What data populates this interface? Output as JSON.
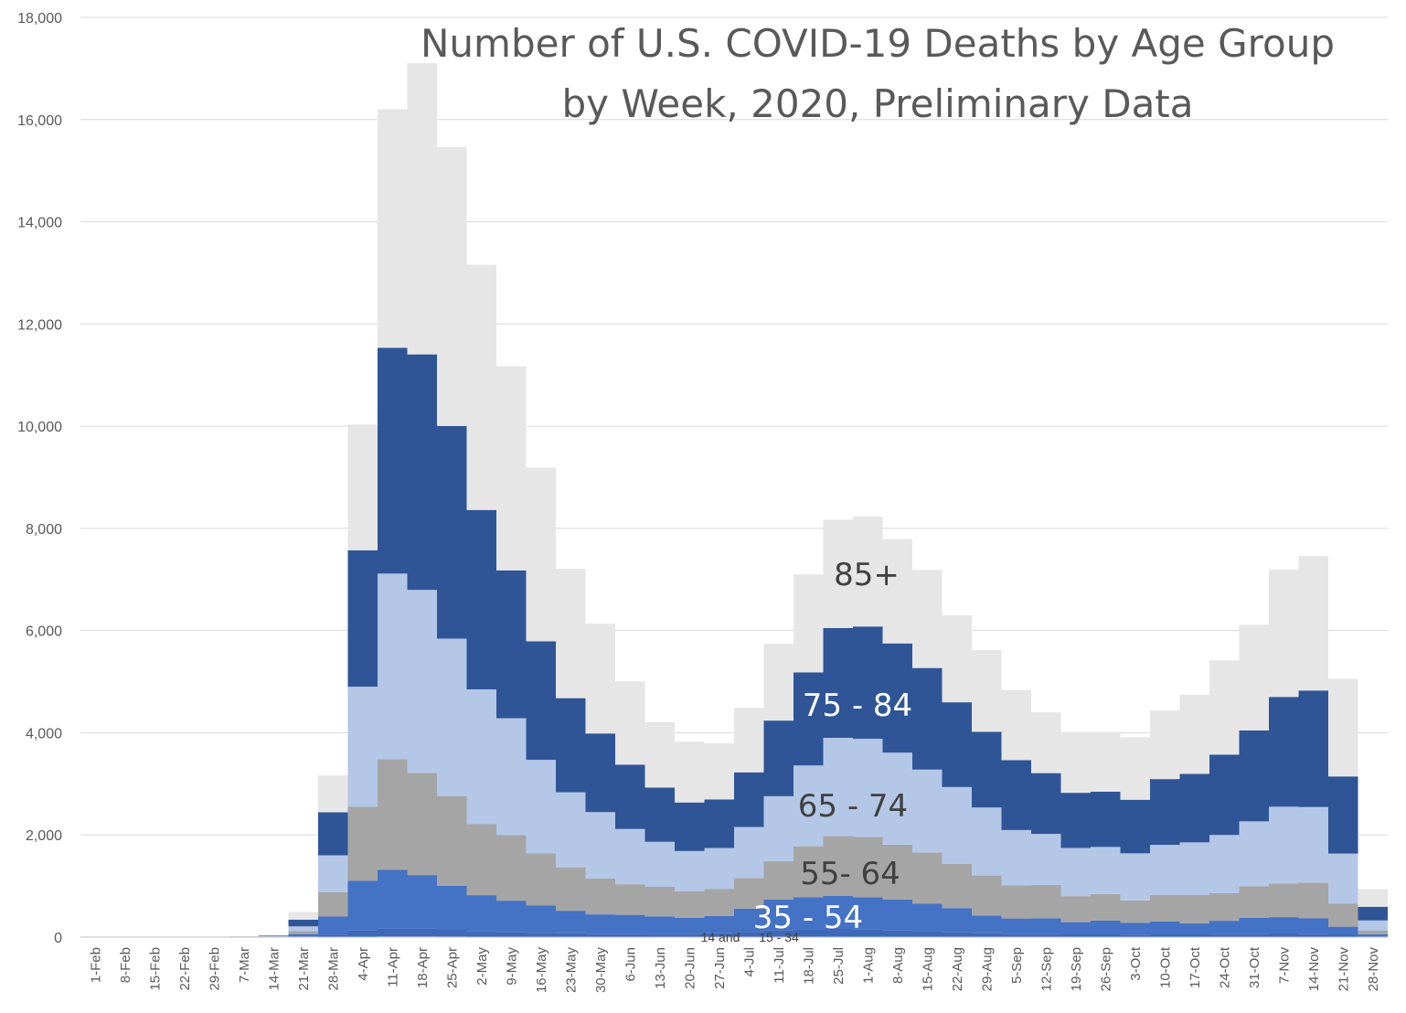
{
  "chart_data": {
    "type": "area",
    "stacked": true,
    "step": true,
    "title_lines": [
      "Number of U.S. COVID-19 Deaths by Age Group",
      "by Week, 2020, Preliminary Data"
    ],
    "xlabel": "",
    "ylabel": "",
    "ylim": [
      0,
      18000
    ],
    "y_ticks": [
      "0",
      "2,000",
      "4,000",
      "6,000",
      "8,000",
      "10,000",
      "12,000",
      "14,000",
      "16,000",
      "18,000"
    ],
    "grid": true,
    "legend": "none",
    "categories": [
      "1-Feb",
      "8-Feb",
      "15-Feb",
      "22-Feb",
      "29-Feb",
      "7-Mar",
      "14-Mar",
      "21-Mar",
      "28-Mar",
      "4-Apr",
      "11-Apr",
      "18-Apr",
      "25-Apr",
      "2-May",
      "9-May",
      "16-May",
      "23-May",
      "30-May",
      "6-Jun",
      "13-Jun",
      "20-Jun",
      "27-Jun",
      "4-Jul",
      "11-Jul",
      "18-Jul",
      "25-Jul",
      "1-Aug",
      "8-Aug",
      "15-Aug",
      "22-Aug",
      "29-Aug",
      "5-Sep",
      "12-Sep",
      "19-Sep",
      "26-Sep",
      "3-Oct",
      "10-Oct",
      "17-Oct",
      "24-Oct",
      "31-Oct",
      "7-Nov",
      "14-Nov",
      "21-Nov",
      "28-Nov"
    ],
    "series": [
      {
        "label": "14 and",
        "color": "#4472c4",
        "values": [
          0,
          0,
          0,
          0,
          0,
          0,
          0,
          1,
          2,
          10,
          14,
          14,
          12,
          10,
          9,
          8,
          7,
          6,
          6,
          5,
          5,
          5,
          6,
          8,
          9,
          10,
          10,
          9,
          8,
          7,
          6,
          5,
          5,
          4,
          4,
          4,
          4,
          4,
          5,
          5,
          6,
          6,
          4,
          1
        ]
      },
      {
        "label": "15 - 34",
        "color": "#3e68b8",
        "values": [
          0,
          0,
          0,
          0,
          0,
          0,
          0,
          10,
          50,
          120,
          150,
          150,
          130,
          110,
          95,
          80,
          70,
          60,
          60,
          60,
          60,
          70,
          100,
          130,
          150,
          150,
          140,
          130,
          110,
          90,
          70,
          60,
          55,
          50,
          50,
          45,
          50,
          50,
          55,
          60,
          65,
          60,
          40,
          15
        ]
      },
      {
        "label": "35 - 54",
        "color": "#4472c4",
        "values": [
          0,
          0,
          0,
          0,
          0,
          1,
          3,
          50,
          350,
          970,
          1150,
          1050,
          860,
          700,
          610,
          530,
          440,
          380,
          370,
          340,
          310,
          340,
          450,
          600,
          620,
          650,
          630,
          600,
          540,
          470,
          350,
          300,
          310,
          240,
          270,
          230,
          250,
          220,
          260,
          310,
          320,
          300,
          160,
          40
        ]
      },
      {
        "label": "55- 64",
        "color": "#a5a5a5",
        "values": [
          0,
          0,
          0,
          0,
          1,
          2,
          5,
          60,
          480,
          1450,
          2170,
          2000,
          1760,
          1390,
          1280,
          1020,
          850,
          700,
          600,
          580,
          520,
          530,
          600,
          750,
          1000,
          1170,
          1180,
          1070,
          1000,
          870,
          780,
          650,
          650,
          510,
          520,
          440,
          520,
          550,
          540,
          620,
          660,
          700,
          450,
          70
        ]
      },
      {
        "label": "65 - 74",
        "color": "#b4c7e7",
        "values": [
          0,
          0,
          0,
          0,
          2,
          4,
          10,
          90,
          720,
          2350,
          3630,
          3580,
          3080,
          2640,
          2290,
          1830,
          1470,
          1300,
          1080,
          880,
          790,
          800,
          1000,
          1270,
          1580,
          1920,
          1920,
          1800,
          1620,
          1500,
          1330,
          1080,
          1000,
          940,
          920,
          920,
          980,
          1030,
          1140,
          1270,
          1500,
          1480,
          980,
          200
        ]
      },
      {
        "label": "75 - 84",
        "color": "#2f5597",
        "values": [
          0,
          0,
          0,
          0,
          2,
          4,
          12,
          130,
          840,
          2670,
          4420,
          4610,
          4160,
          3510,
          2890,
          2320,
          1840,
          1540,
          1260,
          1060,
          950,
          950,
          1070,
          1480,
          1820,
          2150,
          2200,
          2140,
          1990,
          1660,
          1480,
          1370,
          1190,
          1080,
          1080,
          1050,
          1290,
          1340,
          1570,
          1780,
          2150,
          2280,
          1510,
          270
        ]
      },
      {
        "label": "85+",
        "color": "#e7e6e6",
        "values": [
          0,
          0,
          0,
          0,
          5,
          9,
          15,
          150,
          720,
          2460,
          4670,
          5700,
          5460,
          4800,
          4000,
          3400,
          2530,
          2150,
          1630,
          1280,
          1190,
          1100,
          1260,
          1500,
          1920,
          2120,
          2150,
          2040,
          1920,
          1700,
          1600,
          1370,
          1190,
          1190,
          1170,
          1220,
          1340,
          1550,
          1850,
          2070,
          2490,
          2630,
          1910,
          340
        ]
      }
    ],
    "band_labels": [
      {
        "text": "85+",
        "color": "#404040"
      },
      {
        "text": "75 - 84",
        "color": "#ffffff"
      },
      {
        "text": "65 - 74",
        "color": "#404040"
      },
      {
        "text": "55- 64",
        "color": "#404040"
      },
      {
        "text": "35 - 54",
        "color": "#ffffff"
      },
      {
        "text": "14 and",
        "color": "#404040"
      },
      {
        "text": "15 - 34",
        "color": "#404040"
      }
    ]
  }
}
